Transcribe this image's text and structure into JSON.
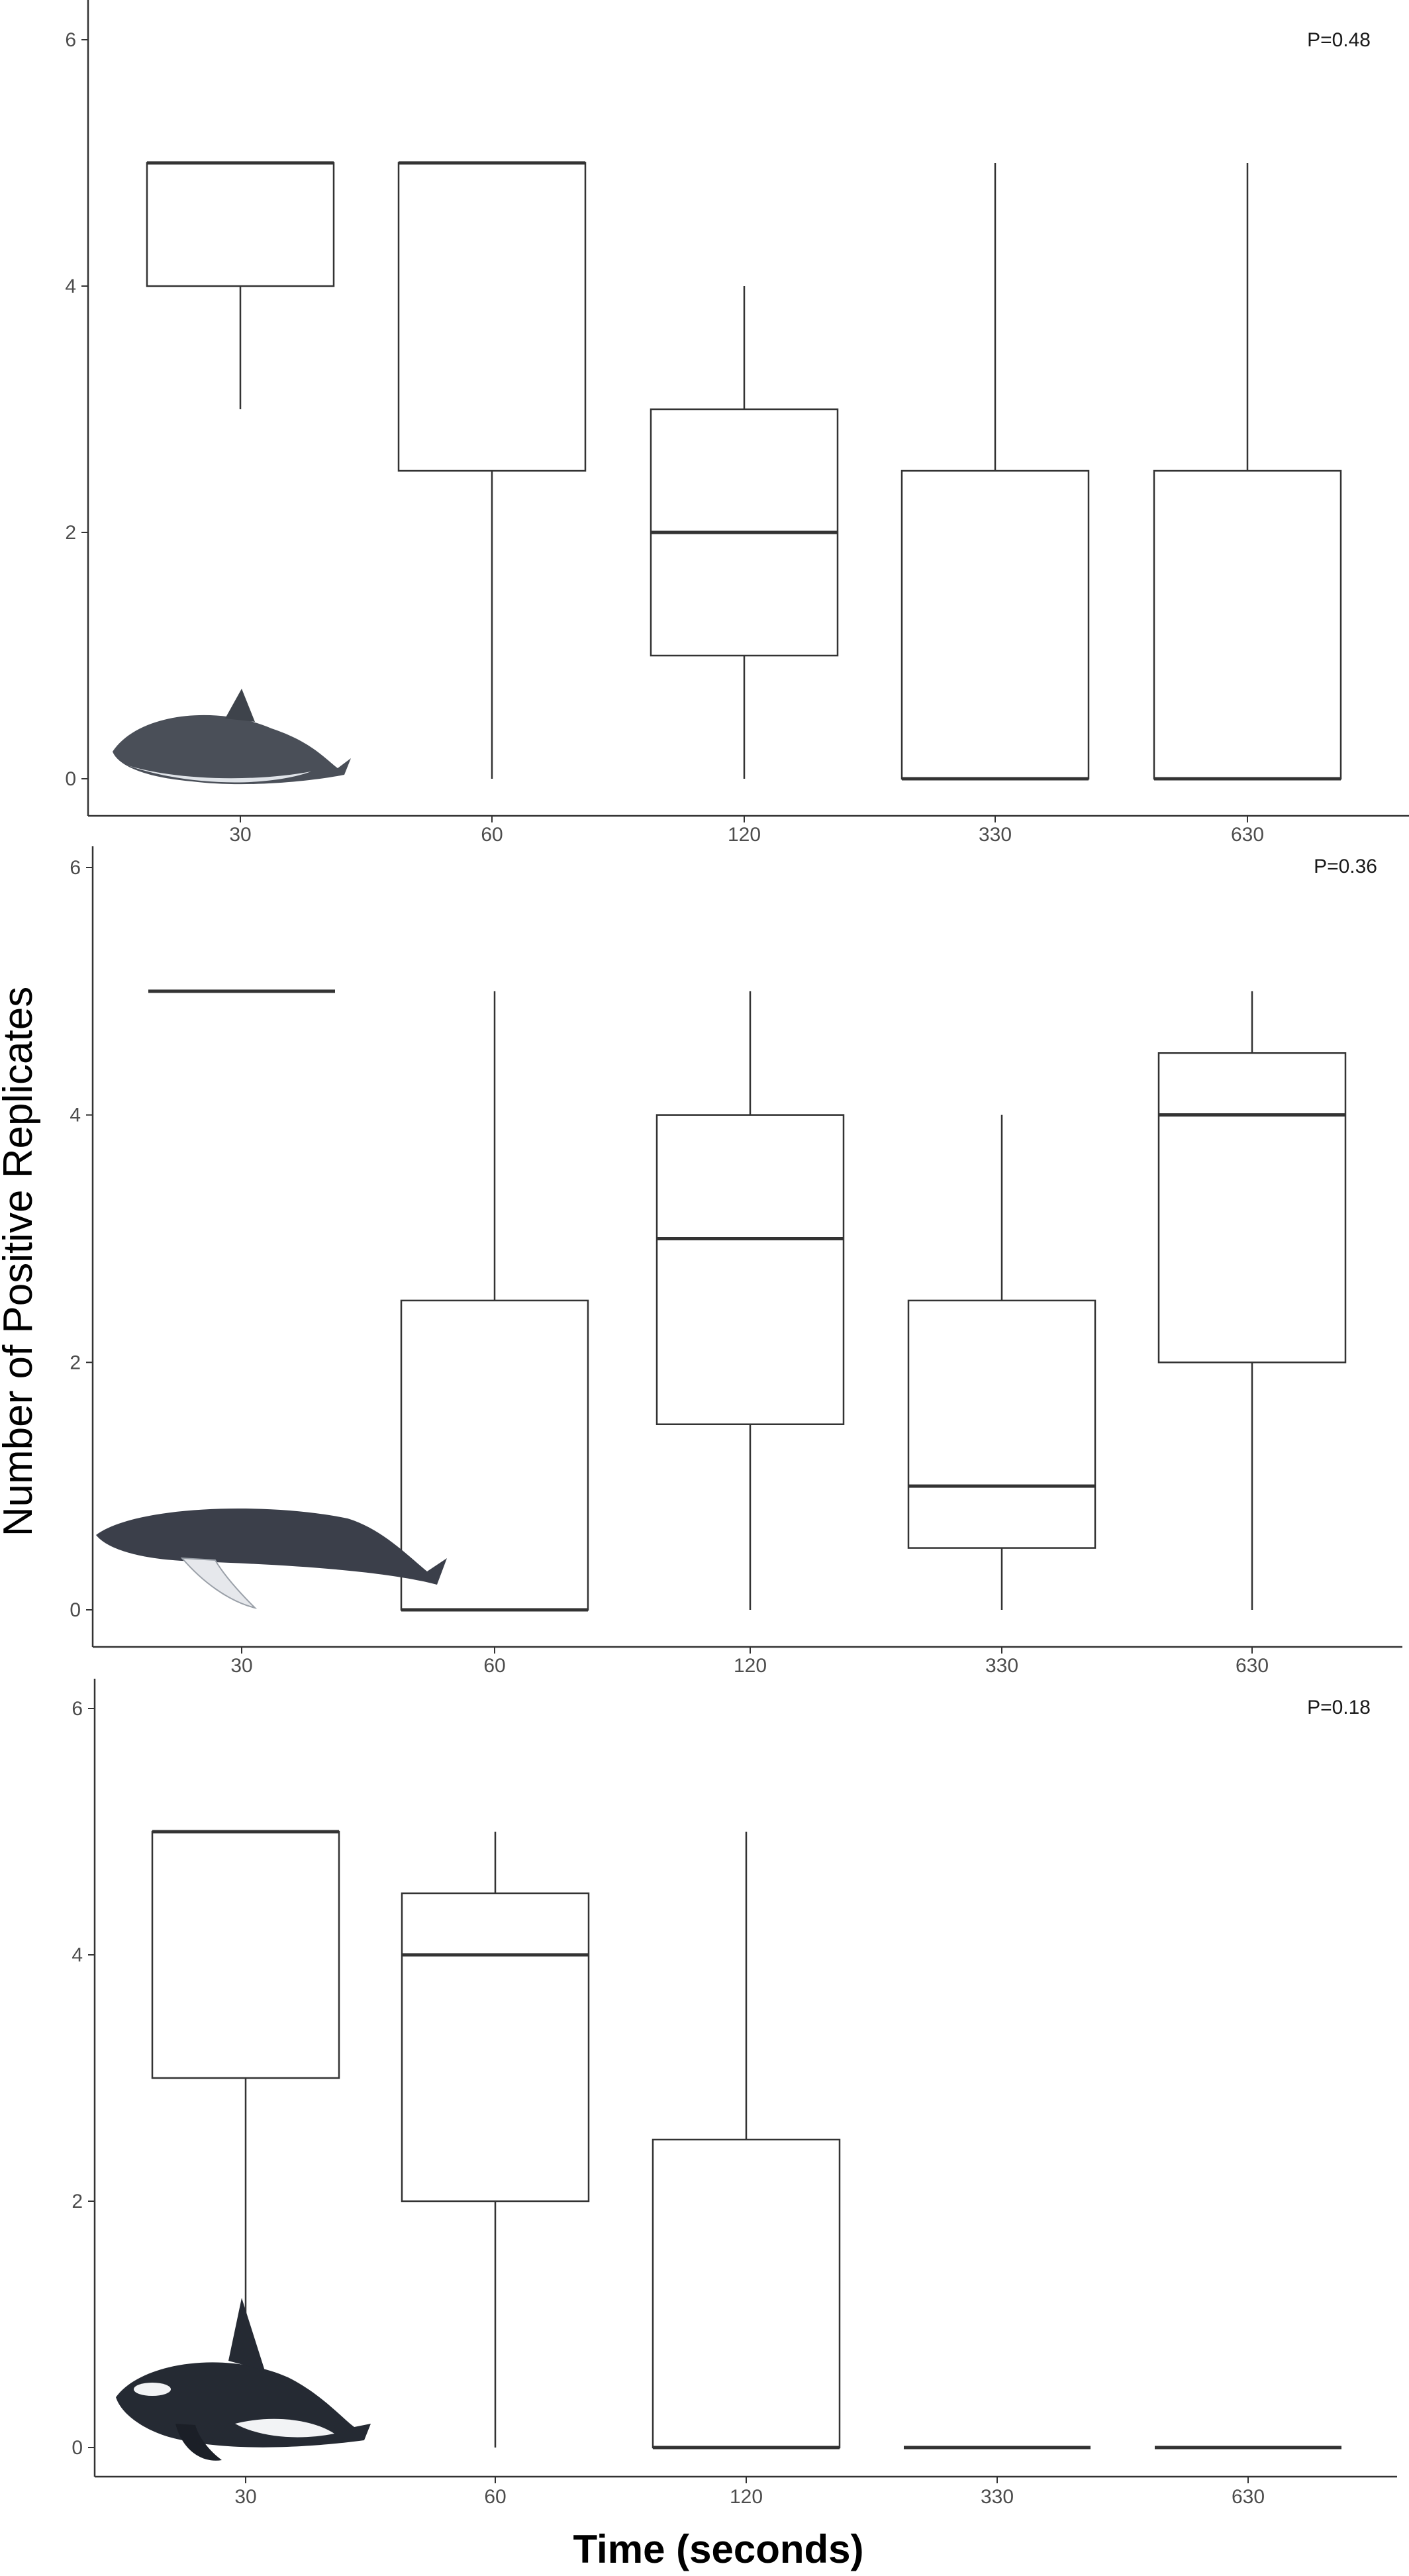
{
  "ylabel": "Number of Positive Replicates",
  "xlabel": "Time (seconds)",
  "style": {
    "box_stroke": "#333333",
    "median_stroke": "#333333",
    "axis_color": "#333333"
  },
  "chart_data": [
    {
      "type": "box",
      "pvalue": "P=0.48",
      "animal_icon": "harbour-porpoise-icon",
      "categories": [
        "30",
        "60",
        "120",
        "330",
        "630"
      ],
      "ylim": [
        -0.25,
        6.25
      ],
      "yticks": [
        "0",
        "2",
        "4",
        "6"
      ],
      "boxes": [
        {
          "min": 3,
          "q1": 4,
          "median": 5,
          "q3": 5,
          "max": 5
        },
        {
          "min": 0,
          "q1": 2.5,
          "median": 5,
          "q3": 5,
          "max": 5
        },
        {
          "min": 0,
          "q1": 1,
          "median": 2,
          "q3": 3,
          "max": 4
        },
        {
          "min": 0,
          "q1": 0,
          "median": 0,
          "q3": 2.5,
          "max": 5
        },
        {
          "min": 0,
          "q1": 0,
          "median": 0,
          "q3": 2.5,
          "max": 5
        }
      ],
      "grid": false
    },
    {
      "type": "box",
      "pvalue": "P=0.36",
      "animal_icon": "humpback-whale-icon",
      "categories": [
        "30",
        "60",
        "120",
        "330",
        "630"
      ],
      "ylim": [
        -0.25,
        6.25
      ],
      "yticks": [
        "0",
        "2",
        "4",
        "6"
      ],
      "boxes": [
        {
          "min": 5,
          "q1": 5,
          "median": 5,
          "q3": 5,
          "max": 5
        },
        {
          "min": 0,
          "q1": 0,
          "median": 0,
          "q3": 2.5,
          "max": 5
        },
        {
          "min": 0,
          "q1": 1.5,
          "median": 3,
          "q3": 4,
          "max": 5
        },
        {
          "min": 0,
          "q1": 0.5,
          "median": 1,
          "q3": 2.5,
          "max": 4
        },
        {
          "min": 0,
          "q1": 2,
          "median": 4,
          "q3": 4.5,
          "max": 5
        }
      ],
      "grid": false
    },
    {
      "type": "box",
      "pvalue": "P=0.18",
      "animal_icon": "killer-whale-icon",
      "categories": [
        "30",
        "60",
        "120",
        "330",
        "630"
      ],
      "ylim": [
        -0.25,
        6.25
      ],
      "yticks": [
        "0",
        "2",
        "4",
        "6"
      ],
      "boxes": [
        {
          "min": 1,
          "q1": 3,
          "median": 5,
          "q3": 5,
          "max": 5
        },
        {
          "min": 0,
          "q1": 2,
          "median": 4,
          "q3": 4.5,
          "max": 5
        },
        {
          "min": 0,
          "q1": 0,
          "median": 0,
          "q3": 2.5,
          "max": 5
        },
        {
          "min": 0,
          "q1": 0,
          "median": 0,
          "q3": 0,
          "max": 0
        },
        {
          "min": 0,
          "q1": 0,
          "median": 0,
          "q3": 0,
          "max": 0
        }
      ],
      "grid": false
    }
  ]
}
